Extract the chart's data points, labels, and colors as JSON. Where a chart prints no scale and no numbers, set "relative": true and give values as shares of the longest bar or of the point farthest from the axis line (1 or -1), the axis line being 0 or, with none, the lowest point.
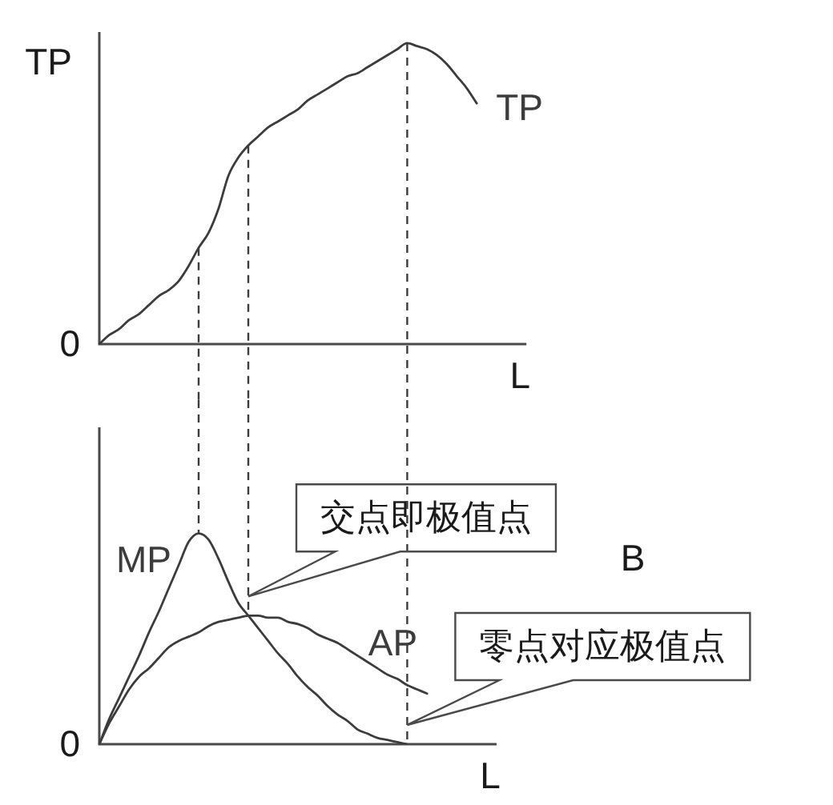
{
  "chart_data": [
    {
      "type": "line",
      "ylabel": "TP",
      "xlabel": "L",
      "relative": true,
      "categories": [
        null,
        null,
        null,
        null,
        null,
        null,
        null,
        null,
        null,
        null,
        null,
        null,
        null,
        null,
        null,
        null,
        null,
        null,
        null,
        null,
        null,
        null,
        null,
        null,
        null,
        null,
        null,
        null,
        null,
        null,
        null,
        null,
        null,
        null,
        null,
        null,
        null,
        null,
        null,
        null,
        null,
        null,
        null,
        null
      ],
      "series": [
        {
          "name": "TP",
          "color": "#3c3c3c",
          "values": [
            0,
            0.03,
            0.05,
            0.08,
            0.1,
            0.13,
            0.16,
            0.18,
            0.21,
            0.26,
            0.32,
            0.37,
            0.45,
            0.56,
            0.62,
            0.66,
            0.69,
            0.72,
            0.74,
            0.76,
            0.78,
            0.81,
            0.83,
            0.85,
            0.87,
            0.89,
            0.9,
            0.92,
            0.94,
            0.96,
            0.98,
            1,
            0.99,
            0.98,
            0.96,
            0.93,
            0.89,
            0.85,
            0.8,
            null,
            null,
            null,
            null,
            null
          ]
        }
      ],
      "annotations": [
        "0"
      ]
    },
    {
      "type": "line",
      "xlabel": "L",
      "relative": true,
      "categories": [
        null,
        null,
        null,
        null,
        null,
        null,
        null,
        null,
        null,
        null,
        null,
        null,
        null,
        null,
        null,
        null,
        null,
        null,
        null,
        null,
        null,
        null,
        null,
        null,
        null,
        null,
        null,
        null,
        null,
        null,
        null,
        null,
        null,
        null,
        null,
        null,
        null,
        null,
        null,
        null,
        null
      ],
      "series": [
        {
          "name": "MP",
          "color": "#3c3c3c",
          "values": [
            0,
            0.12,
            0.22,
            0.32,
            0.42,
            0.53,
            0.63,
            0.74,
            0.85,
            0.96,
            1,
            0.97,
            0.88,
            0.77,
            0.67,
            0.61,
            0.55,
            0.49,
            0.43,
            0.38,
            0.32,
            0.27,
            0.23,
            0.18,
            0.14,
            0.11,
            0.07,
            0.05,
            0.03,
            0.02,
            0.01,
            0,
            null,
            null,
            null,
            null,
            null,
            null,
            null,
            null,
            null
          ]
        },
        {
          "name": "AP",
          "color": "#3c3c3c",
          "values": [
            0,
            0.1,
            0.18,
            0.26,
            0.32,
            0.36,
            0.41,
            0.46,
            0.49,
            0.51,
            0.53,
            0.56,
            0.58,
            0.59,
            0.6,
            0.61,
            0.61,
            0.6,
            0.6,
            0.58,
            0.57,
            0.55,
            0.52,
            0.5,
            0.48,
            0.45,
            0.42,
            0.39,
            0.36,
            0.33,
            0.31,
            0.28,
            0.26,
            0.24,
            null,
            null,
            null,
            null,
            null,
            null,
            null
          ]
        }
      ],
      "annotations": [
        "0",
        "B",
        "交点即极值点",
        "零点对应极值点"
      ]
    }
  ]
}
